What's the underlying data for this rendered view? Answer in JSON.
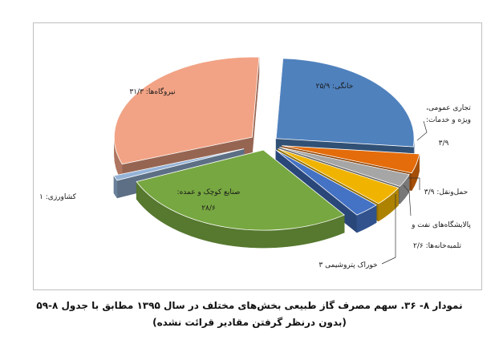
{
  "caption": {
    "line1": "نمودار ۸- ۳۶. سهم مصرف گاز طبیعی بخش‌های مختلف در سال ۱۳۹۵ مطابق با جدول ۸-۵۹",
    "line2": "(بدون درنظر گرفتن مقادیر قرائت نشده)"
  },
  "chart_data": {
    "type": "pie",
    "style": "3d-exploded",
    "slices": [
      {
        "label": "خانگی",
        "value_text": "۲۵/۹",
        "value": 25.9,
        "color": "#4f81bd"
      },
      {
        "label": "تجاری عمومی، ویژه و خدمات",
        "value_text": "۳/۹",
        "value": 3.9,
        "color": "#e46c0a"
      },
      {
        "label": "پالایشگاه‌های نفت و تلمبه‌خانه‌ها",
        "value_text": "۲/۶",
        "value": 2.6,
        "color": "#a6a6a6"
      },
      {
        "label": "حمل‌ونقل",
        "value_text": "۳/۹",
        "value": 3.9,
        "color": "#f0b400"
      },
      {
        "label": "خوراک پتروشیمی",
        "value_text": "۳",
        "value": 3.0,
        "color": "#4472c4"
      },
      {
        "label": "صنایع کوچک و عمده",
        "value_text": "۲۸/۶",
        "value": 28.6,
        "color": "#77a741"
      },
      {
        "label": "کشاورزی",
        "value_text": "۱",
        "value": 1.0,
        "color": "#95b3d7"
      },
      {
        "label": "نیروگاه‌ها",
        "value_text": "۳۱/۳",
        "value": 31.3,
        "color": "#f2a385"
      }
    ],
    "labels": {
      "khanegi": "خانگی: ۲۵/۹",
      "tejari_1": "تجاری عمومی،",
      "tejari_2": "ویژه و خدمات:",
      "tejari_3": "۳/۹",
      "hamlonaql": "حمل‌ونقل: ۳/۹",
      "palayesh_1": "پالایشگاه‌های نفت و",
      "palayesh_2": "تلمبه‌خانه‌ها: ۲/۶",
      "khorak": "خوراک پتروشیمی ۳",
      "sanaye_1": "صنایع کوچک و عمده:",
      "sanaye_2": "۲۸/۶",
      "keshavarzi": "کشاورزی: ۱",
      "niroogah": "نیروگاه‌ها: ۳۱/۳"
    }
  }
}
